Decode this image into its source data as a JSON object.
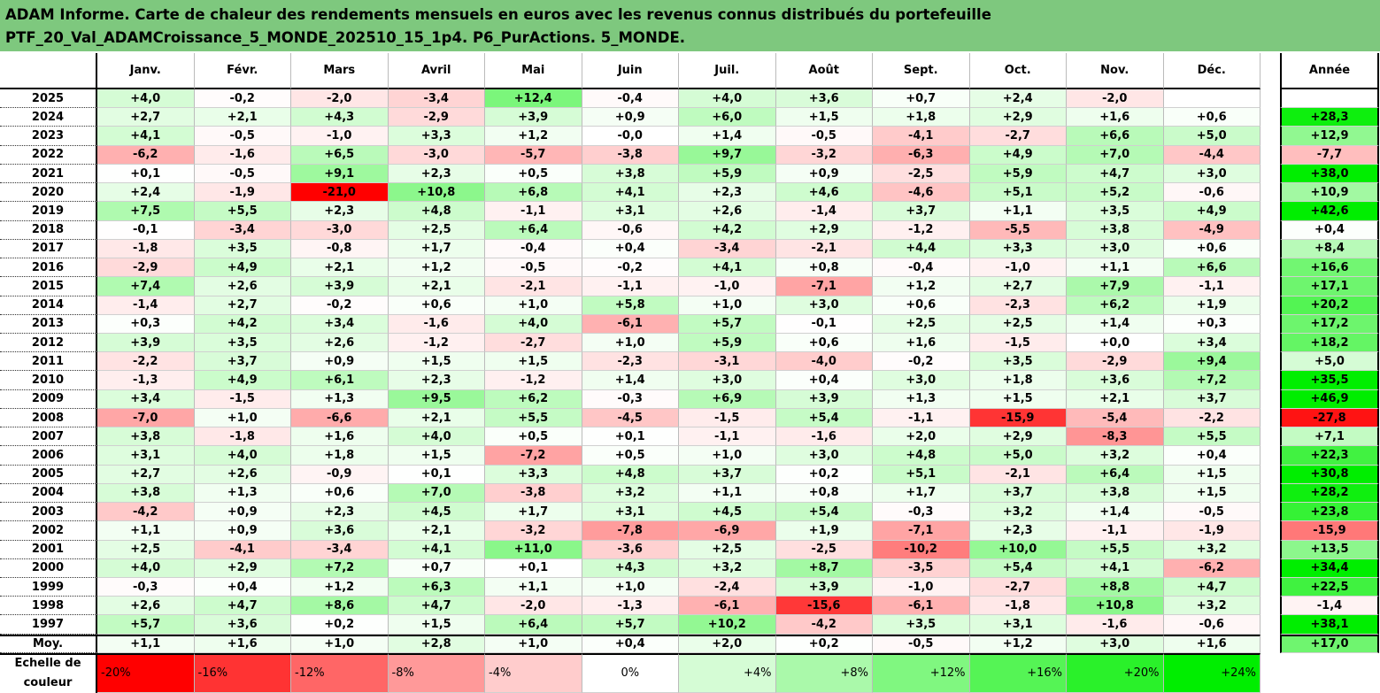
{
  "title_line1": "ADAM Informe. Carte de chaleur des rendements mensuels en euros avec les revenus connus distribués du portefeuille",
  "title_line2": "PTF_20_Val_ADAMCroissance_5_MONDE_202510_15_1p4. P6_PurActions. 5_MONDE.",
  "colors": {
    "title_bg": "#7ec87e",
    "negative": "#ff0000",
    "positive": "#00ee00",
    "neutral": "#ffffff"
  },
  "chart_data": {
    "type": "heatmap",
    "columns": [
      "Janv.",
      "Févr.",
      "Mars",
      "Avril",
      "Mai",
      "Juin",
      "Juil.",
      "Août",
      "Sept.",
      "Oct.",
      "Nov.",
      "Déc."
    ],
    "year_column": "Année",
    "rows": [
      {
        "label": "2025",
        "values": [
          "+4,0",
          "-0,2",
          "-2,0",
          "-3,4",
          "+12,4",
          "-0,4",
          "+4,0",
          "+3,6",
          "+0,7",
          "+2,4",
          "-2,0",
          ""
        ],
        "year": ""
      },
      {
        "label": "2024",
        "values": [
          "+2,7",
          "+2,1",
          "+4,3",
          "-2,9",
          "+3,9",
          "+0,9",
          "+6,0",
          "+1,5",
          "+1,8",
          "+2,9",
          "+1,6",
          "+0,6"
        ],
        "year": "+28,3"
      },
      {
        "label": "2023",
        "values": [
          "+4,1",
          "-0,5",
          "-1,0",
          "+3,3",
          "+1,2",
          "-0,0",
          "+1,4",
          "-0,5",
          "-4,1",
          "-2,7",
          "+6,6",
          "+5,0"
        ],
        "year": "+12,9"
      },
      {
        "label": "2022",
        "values": [
          "-6,2",
          "-1,6",
          "+6,5",
          "-3,0",
          "-5,7",
          "-3,8",
          "+9,7",
          "-3,2",
          "-6,3",
          "+4,9",
          "+7,0",
          "-4,4"
        ],
        "year": "-7,7"
      },
      {
        "label": "2021",
        "values": [
          "+0,1",
          "-0,5",
          "+9,1",
          "+2,3",
          "+0,5",
          "+3,8",
          "+5,9",
          "+0,9",
          "-2,5",
          "+5,9",
          "+4,7",
          "+3,0"
        ],
        "year": "+38,0"
      },
      {
        "label": "2020",
        "values": [
          "+2,4",
          "-1,9",
          "-21,0",
          "+10,8",
          "+6,8",
          "+4,1",
          "+2,3",
          "+4,6",
          "-4,6",
          "+5,1",
          "+5,2",
          "-0,6"
        ],
        "year": "+10,9"
      },
      {
        "label": "2019",
        "values": [
          "+7,5",
          "+5,5",
          "+2,3",
          "+4,8",
          "-1,1",
          "+3,1",
          "+2,6",
          "-1,4",
          "+3,7",
          "+1,1",
          "+3,5",
          "+4,9"
        ],
        "year": "+42,6"
      },
      {
        "label": "2018",
        "values": [
          "-0,1",
          "-3,4",
          "-3,0",
          "+2,5",
          "+6,4",
          "-0,6",
          "+4,2",
          "+2,9",
          "-1,2",
          "-5,5",
          "+3,8",
          "-4,9"
        ],
        "year": "+0,4"
      },
      {
        "label": "2017",
        "values": [
          "-1,8",
          "+3,5",
          "-0,8",
          "+1,7",
          "-0,4",
          "+0,4",
          "-3,4",
          "-2,1",
          "+4,4",
          "+3,3",
          "+3,0",
          "+0,6"
        ],
        "year": "+8,4"
      },
      {
        "label": "2016",
        "values": [
          "-2,9",
          "+4,9",
          "+2,1",
          "+1,2",
          "-0,5",
          "-0,2",
          "+4,1",
          "+0,8",
          "-0,4",
          "-1,0",
          "+1,1",
          "+6,6"
        ],
        "year": "+16,6"
      },
      {
        "label": "2015",
        "values": [
          "+7,4",
          "+2,6",
          "+3,9",
          "+2,1",
          "-2,1",
          "-1,1",
          "-1,0",
          "-7,1",
          "+1,2",
          "+2,7",
          "+7,9",
          "-1,1"
        ],
        "year": "+17,1"
      },
      {
        "label": "2014",
        "values": [
          "-1,4",
          "+2,7",
          "-0,2",
          "+0,6",
          "+1,0",
          "+5,8",
          "+1,0",
          "+3,0",
          "+0,6",
          "-2,3",
          "+6,2",
          "+1,9"
        ],
        "year": "+20,2"
      },
      {
        "label": "2013",
        "values": [
          "+0,3",
          "+4,2",
          "+3,4",
          "-1,6",
          "+4,0",
          "-6,1",
          "+5,7",
          "-0,1",
          "+2,5",
          "+2,5",
          "+1,4",
          "+0,3"
        ],
        "year": "+17,2"
      },
      {
        "label": "2012",
        "values": [
          "+3,9",
          "+3,5",
          "+2,6",
          "-1,2",
          "-2,7",
          "+1,0",
          "+5,9",
          "+0,6",
          "+1,6",
          "-1,5",
          "+0,0",
          "+3,4"
        ],
        "year": "+18,2"
      },
      {
        "label": "2011",
        "values": [
          "-2,2",
          "+3,7",
          "+0,9",
          "+1,5",
          "+1,5",
          "-2,3",
          "-3,1",
          "-4,0",
          "-0,2",
          "+3,5",
          "-2,9",
          "+9,4"
        ],
        "year": "+5,0"
      },
      {
        "label": "2010",
        "values": [
          "-1,3",
          "+4,9",
          "+6,1",
          "+2,3",
          "-1,2",
          "+1,4",
          "+3,0",
          "+0,4",
          "+3,0",
          "+1,8",
          "+3,6",
          "+7,2"
        ],
        "year": "+35,5"
      },
      {
        "label": "2009",
        "values": [
          "+3,4",
          "-1,5",
          "+1,3",
          "+9,5",
          "+6,2",
          "-0,3",
          "+6,9",
          "+3,9",
          "+1,3",
          "+1,5",
          "+2,1",
          "+3,7"
        ],
        "year": "+46,9"
      },
      {
        "label": "2008",
        "values": [
          "-7,0",
          "+1,0",
          "-6,6",
          "+2,1",
          "+5,5",
          "-4,5",
          "-1,5",
          "+5,4",
          "-1,1",
          "-15,9",
          "-5,4",
          "-2,2"
        ],
        "year": "-27,8"
      },
      {
        "label": "2007",
        "values": [
          "+3,8",
          "-1,8",
          "+1,6",
          "+4,0",
          "+0,5",
          "+0,1",
          "-1,1",
          "-1,6",
          "+2,0",
          "+2,9",
          "-8,3",
          "+5,5"
        ],
        "year": "+7,1"
      },
      {
        "label": "2006",
        "values": [
          "+3,1",
          "+4,0",
          "+1,8",
          "+1,5",
          "-7,2",
          "+0,5",
          "+1,0",
          "+3,0",
          "+4,8",
          "+5,0",
          "+3,2",
          "+0,4"
        ],
        "year": "+22,3"
      },
      {
        "label": "2005",
        "values": [
          "+2,7",
          "+2,6",
          "-0,9",
          "+0,1",
          "+3,3",
          "+4,8",
          "+3,7",
          "+0,2",
          "+5,1",
          "-2,1",
          "+6,4",
          "+1,5"
        ],
        "year": "+30,8"
      },
      {
        "label": "2004",
        "values": [
          "+3,8",
          "+1,3",
          "+0,6",
          "+7,0",
          "-3,8",
          "+3,2",
          "+1,1",
          "+0,8",
          "+1,7",
          "+3,7",
          "+3,8",
          "+1,5"
        ],
        "year": "+28,2"
      },
      {
        "label": "2003",
        "values": [
          "-4,2",
          "+0,9",
          "+2,3",
          "+4,5",
          "+1,7",
          "+3,1",
          "+4,5",
          "+5,4",
          "-0,3",
          "+3,2",
          "+1,4",
          "-0,5"
        ],
        "year": "+23,8"
      },
      {
        "label": "2002",
        "values": [
          "+1,1",
          "+0,9",
          "+3,6",
          "+2,1",
          "-3,2",
          "-7,8",
          "-6,9",
          "+1,9",
          "-7,1",
          "+2,3",
          "-1,1",
          "-1,9"
        ],
        "year": "-15,9"
      },
      {
        "label": "2001",
        "values": [
          "+2,5",
          "-4,1",
          "-3,4",
          "+4,1",
          "+11,0",
          "-3,6",
          "+2,5",
          "-2,5",
          "-10,2",
          "+10,0",
          "+5,5",
          "+3,2"
        ],
        "year": "+13,5"
      },
      {
        "label": "2000",
        "values": [
          "+4,0",
          "+2,9",
          "+7,2",
          "+0,7",
          "+0,1",
          "+4,3",
          "+3,2",
          "+8,7",
          "-3,5",
          "+5,4",
          "+4,1",
          "-6,2"
        ],
        "year": "+34,4"
      },
      {
        "label": "1999",
        "values": [
          "-0,3",
          "+0,4",
          "+1,2",
          "+6,3",
          "+1,1",
          "+1,0",
          "-2,4",
          "+3,9",
          "-1,0",
          "-2,7",
          "+8,8",
          "+4,7"
        ],
        "year": "+22,5"
      },
      {
        "label": "1998",
        "values": [
          "+2,6",
          "+4,7",
          "+8,6",
          "+4,7",
          "-2,0",
          "-1,3",
          "-6,1",
          "-15,6",
          "-6,1",
          "-1,8",
          "+10,8",
          "+3,2"
        ],
        "year": "-1,4"
      },
      {
        "label": "1997",
        "values": [
          "+5,7",
          "+3,6",
          "+0,2",
          "+1,5",
          "+6,4",
          "+5,7",
          "+10,2",
          "-4,2",
          "+3,5",
          "+3,1",
          "-1,6",
          "-0,6"
        ],
        "year": "+38,1"
      },
      {
        "label": "Moy.",
        "values": [
          "+1,1",
          "+1,6",
          "+1,0",
          "+2,8",
          "+1,0",
          "+0,4",
          "+2,0",
          "+0,2",
          "-0,5",
          "+1,2",
          "+3,0",
          "+1,6"
        ],
        "year": "+17,0"
      }
    ],
    "scale_label": [
      "Echelle de",
      "couleur"
    ],
    "scale": [
      "-20%",
      "-16%",
      "-12%",
      "-8%",
      "-4%",
      "0%",
      "+4%",
      "+8%",
      "+12%",
      "+16%",
      "+20%",
      "+24%"
    ],
    "color_range": [
      -20,
      24
    ]
  }
}
